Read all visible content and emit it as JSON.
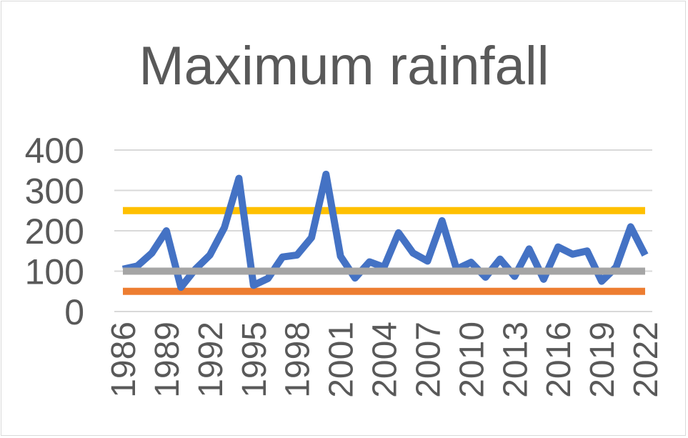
{
  "chart_data": {
    "type": "line",
    "title": "Maximum rainfall",
    "xlabel": "",
    "ylabel": "",
    "ylim": [
      0,
      400
    ],
    "yticks": [
      "0",
      "100",
      "200",
      "300",
      "400"
    ],
    "xticks": [
      "1986",
      "1989",
      "1992",
      "1995",
      "1998",
      "2001",
      "2004",
      "2007",
      "2010",
      "2013",
      "2016",
      "2019",
      "2022"
    ],
    "grid": true,
    "legend": "none",
    "x": [
      1986,
      1987,
      1988,
      1989,
      1990,
      1991,
      1992,
      1993,
      1994,
      1995,
      1996,
      1997,
      1998,
      1999,
      2000,
      2001,
      2002,
      2003,
      2004,
      2005,
      2006,
      2007,
      2008,
      2009,
      2010,
      2011,
      2012,
      2013,
      2014,
      2015,
      2016,
      2017,
      2018,
      2019,
      2020,
      2021,
      2022
    ],
    "series": [
      {
        "color": "#4472c4",
        "values": [
          105,
          113,
          145,
          200,
          60,
          105,
          140,
          208,
          330,
          65,
          82,
          135,
          140,
          183,
          340,
          137,
          83,
          123,
          110,
          195,
          145,
          125,
          225,
          105,
          122,
          85,
          130,
          87,
          155,
          80,
          160,
          142,
          150,
          75,
          110,
          210,
          140
        ]
      },
      {
        "color": "#ffc000",
        "values": [
          250,
          250,
          250,
          250,
          250,
          250,
          250,
          250,
          250,
          250,
          250,
          250,
          250,
          250,
          250,
          250,
          250,
          250,
          250,
          250,
          250,
          250,
          250,
          250,
          250,
          250,
          250,
          250,
          250,
          250,
          250,
          250,
          250,
          250,
          250,
          250,
          250
        ]
      },
      {
        "color": "#a5a5a5",
        "values": [
          100,
          100,
          100,
          100,
          100,
          100,
          100,
          100,
          100,
          100,
          100,
          100,
          100,
          100,
          100,
          100,
          100,
          100,
          100,
          100,
          100,
          100,
          100,
          100,
          100,
          100,
          100,
          100,
          100,
          100,
          100,
          100,
          100,
          100,
          100,
          100,
          100
        ]
      },
      {
        "color": "#ed7d31",
        "values": [
          50,
          50,
          50,
          50,
          50,
          50,
          50,
          50,
          50,
          50,
          50,
          50,
          50,
          50,
          50,
          50,
          50,
          50,
          50,
          50,
          50,
          50,
          50,
          50,
          50,
          50,
          50,
          50,
          50,
          50,
          50,
          50,
          50,
          50,
          50,
          50,
          50
        ]
      }
    ]
  }
}
